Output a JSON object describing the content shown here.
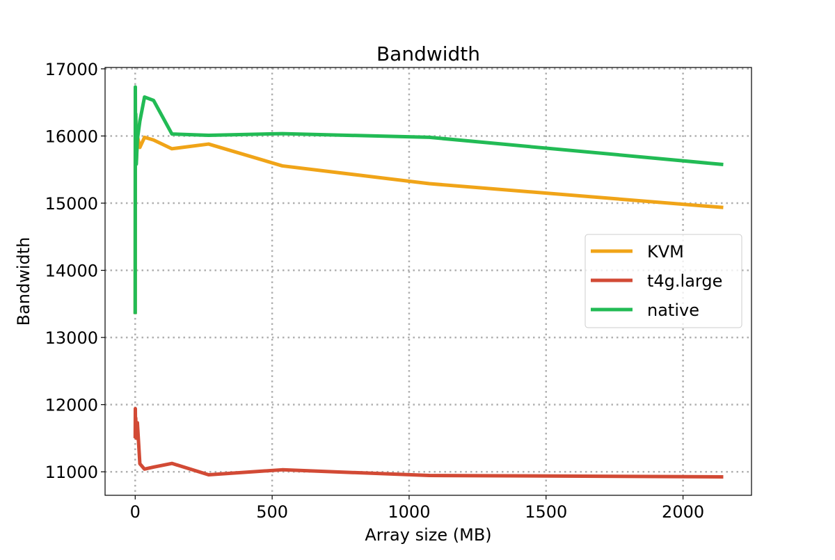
{
  "chart_data": {
    "type": "line",
    "title": "Bandwidth",
    "xlabel": "Array size (MB)",
    "ylabel": "Bandwidth",
    "xlim": [
      -110,
      2250
    ],
    "ylim": [
      10650,
      17020
    ],
    "xticks": [
      0,
      500,
      1000,
      1500,
      2000
    ],
    "xtick_labels": [
      "0",
      "500",
      "1000",
      "1500",
      "2000"
    ],
    "yticks": [
      11000,
      12000,
      13000,
      14000,
      15000,
      16000,
      17000
    ],
    "ytick_labels": [
      "11000",
      "12000",
      "13000",
      "14000",
      "15000",
      "16000",
      "17000"
    ],
    "grid": true,
    "legend_position": "center-right",
    "series": [
      {
        "name": "KVM",
        "color": "#f0a418",
        "points": [
          [
            0,
            13350
          ],
          [
            0.5,
            16700
          ],
          [
            1,
            15650
          ],
          [
            2,
            16300
          ],
          [
            4,
            15600
          ],
          [
            8,
            16000
          ],
          [
            17,
            15830
          ],
          [
            34,
            15980
          ],
          [
            67,
            15940
          ],
          [
            134,
            15810
          ],
          [
            268,
            15880
          ],
          [
            537,
            15555
          ],
          [
            1074,
            15290
          ],
          [
            2147,
            14935
          ]
        ]
      },
      {
        "name": "t4g.large",
        "color": "#d24a35",
        "points": [
          [
            0,
            11500
          ],
          [
            0.5,
            11940
          ],
          [
            1,
            11700
          ],
          [
            2,
            11800
          ],
          [
            4,
            11500
          ],
          [
            8,
            11730
          ],
          [
            17,
            11120
          ],
          [
            34,
            11040
          ],
          [
            67,
            11070
          ],
          [
            134,
            11125
          ],
          [
            268,
            10955
          ],
          [
            537,
            11030
          ],
          [
            1074,
            10945
          ],
          [
            2147,
            10925
          ]
        ]
      },
      {
        "name": "native",
        "color": "#22bb55",
        "points": [
          [
            0,
            13350
          ],
          [
            0.5,
            16730
          ],
          [
            1,
            15680
          ],
          [
            2,
            16330
          ],
          [
            4,
            15580
          ],
          [
            8,
            15950
          ],
          [
            17,
            16220
          ],
          [
            34,
            16580
          ],
          [
            67,
            16530
          ],
          [
            134,
            16030
          ],
          [
            268,
            16010
          ],
          [
            537,
            16035
          ],
          [
            1074,
            15980
          ],
          [
            2147,
            15575
          ]
        ]
      }
    ]
  }
}
